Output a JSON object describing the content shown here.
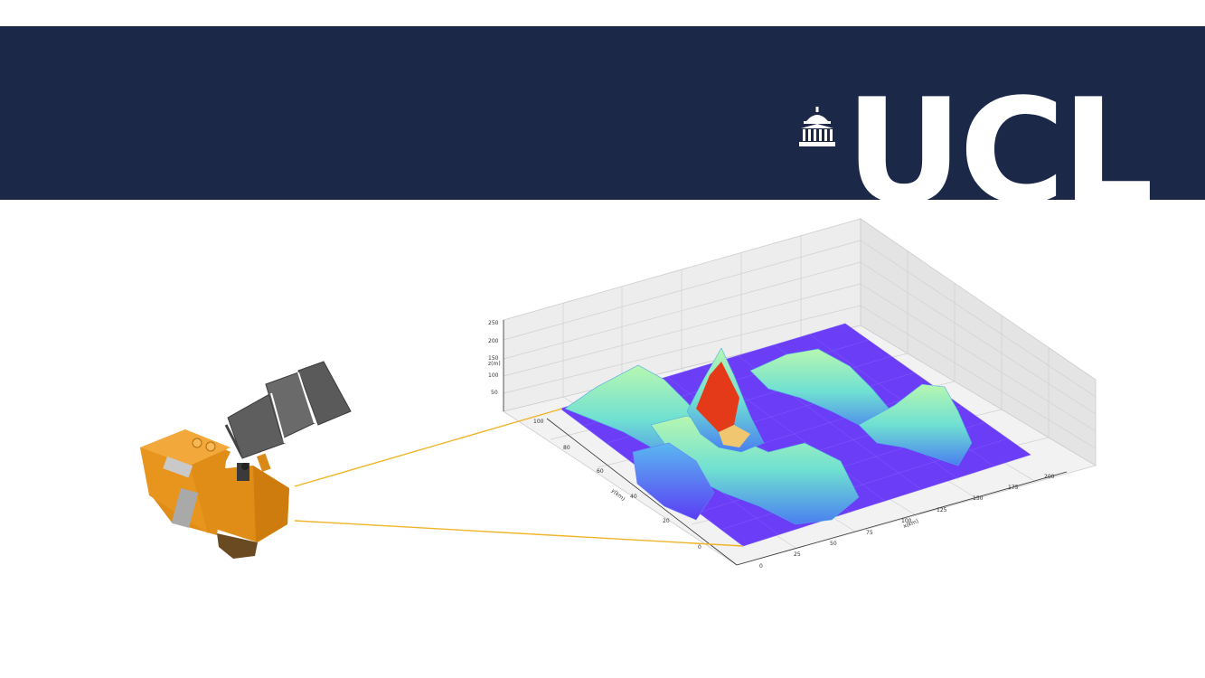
{
  "slide": {
    "logo_text": "UCL",
    "colors": {
      "banner": "#1b2848",
      "logo": "#ffffff",
      "satellite": "#e8951e",
      "solar_panel": "#5a5a5a",
      "beam": "#f0b429",
      "surface_low": "#6a3cff",
      "surface_mid": "#7ff0c8",
      "surface_high": "#e53a1a"
    },
    "icons": [
      "portico-icon",
      "satellite-icon",
      "solar-panel-icon"
    ]
  },
  "chart_data": {
    "type": "surface3d",
    "title": "",
    "xlabel": "x(km)",
    "ylabel": "y(km)",
    "zlabel": "z(m)",
    "x_ticks": [
      "0",
      "25",
      "50",
      "75",
      "100",
      "125",
      "150",
      "175",
      "200"
    ],
    "y_ticks": [
      "0",
      "20",
      "40",
      "60",
      "80",
      "100"
    ],
    "z_ticks": [
      "50",
      "100",
      "150",
      "200",
      "250"
    ],
    "xlim": [
      0,
      200
    ],
    "ylim": [
      0,
      100
    ],
    "zlim": [
      0,
      250
    ],
    "grid": true
  }
}
